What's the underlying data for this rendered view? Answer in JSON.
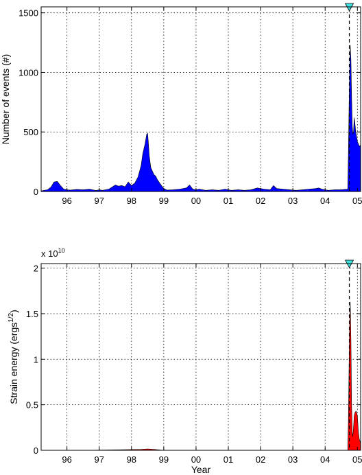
{
  "chart_data": [
    {
      "type": "area",
      "title": "",
      "xlabel": "",
      "ylabel": "Number of events (#)",
      "xlim": [
        1995.2,
        2005.1
      ],
      "ylim": [
        0,
        1550
      ],
      "xticks": [
        1996,
        1997,
        1998,
        1999,
        2000,
        2001,
        2002,
        2003,
        2004,
        2005
      ],
      "xtick_labels": [
        "96",
        "97",
        "98",
        "99",
        "00",
        "01",
        "02",
        "03",
        "04",
        "05"
      ],
      "yticks": [
        0,
        500,
        1000,
        1500
      ],
      "ytick_labels": [
        "0",
        "500",
        "1000",
        "1500"
      ],
      "grid": true,
      "fill_color": "#0000ff",
      "marker": {
        "x": 2004.75,
        "shape": "inverted-triangle",
        "color": "#40e0e0"
      },
      "series": [
        {
          "x": [
            1995.2,
            1995.4,
            1995.5,
            1995.6,
            1995.7,
            1995.8,
            1995.9,
            1996.0,
            1996.1,
            1996.3,
            1996.5,
            1996.7,
            1996.9,
            1997.0,
            1997.1,
            1997.3,
            1997.5,
            1997.6,
            1997.7,
            1997.8,
            1997.9,
            1998.0,
            1998.1,
            1998.2,
            1998.3,
            1998.35,
            1998.42,
            1998.47,
            1998.5,
            1998.52,
            1998.55,
            1998.6,
            1998.65,
            1998.7,
            1998.75,
            1998.8,
            1998.85,
            1998.9,
            1999.0,
            1999.1,
            1999.3,
            1999.5,
            1999.7,
            1999.8,
            1999.9,
            2000.0,
            2000.1,
            2000.3,
            2000.5,
            2000.7,
            2000.9,
            2001.1,
            2001.3,
            2001.5,
            2001.7,
            2001.9,
            2002.1,
            2002.3,
            2002.4,
            2002.5,
            2002.7,
            2002.9,
            2003.1,
            2003.3,
            2003.5,
            2003.7,
            2003.8,
            2003.9,
            2004.1,
            2004.3,
            2004.5,
            2004.7,
            2004.72,
            2004.74,
            2004.76,
            2004.78,
            2004.8,
            2004.82,
            2004.84,
            2004.86,
            2004.88,
            2004.9,
            2004.92,
            2004.95,
            2004.98,
            2005.0,
            2005.03,
            2005.06,
            2005.1
          ],
          "y": [
            5,
            15,
            35,
            80,
            85,
            50,
            20,
            15,
            12,
            18,
            15,
            20,
            8,
            15,
            10,
            20,
            55,
            45,
            50,
            40,
            80,
            50,
            70,
            120,
            220,
            320,
            400,
            480,
            490,
            420,
            300,
            200,
            170,
            140,
            130,
            100,
            80,
            60,
            25,
            12,
            15,
            20,
            30,
            55,
            20,
            15,
            20,
            10,
            15,
            10,
            20,
            10,
            15,
            10,
            15,
            30,
            20,
            15,
            50,
            25,
            20,
            15,
            10,
            15,
            20,
            25,
            30,
            20,
            10,
            15,
            15,
            20,
            300,
            700,
            1000,
            1230,
            1100,
            800,
            550,
            480,
            500,
            620,
            580,
            500,
            450,
            420,
            400,
            380,
            390
          ]
        }
      ]
    },
    {
      "type": "area",
      "title": "",
      "xlabel": "Year",
      "ylabel": "Strain energy (ergs",
      "ylabel_superscript": "1/2",
      "ylabel_close": ")",
      "multiplier": "x 10",
      "multiplier_exponent": "10",
      "xlim": [
        1995.2,
        2005.1
      ],
      "ylim": [
        0,
        2.05
      ],
      "xticks": [
        1996,
        1997,
        1998,
        1999,
        2000,
        2001,
        2002,
        2003,
        2004,
        2005
      ],
      "xtick_labels": [
        "96",
        "97",
        "98",
        "99",
        "00",
        "01",
        "02",
        "03",
        "04",
        "05"
      ],
      "yticks": [
        0,
        0.5,
        1,
        1.5,
        2
      ],
      "ytick_labels": [
        "0",
        "0.5",
        "1",
        "1.5",
        "2"
      ],
      "grid": true,
      "fill_color": "#ff0000",
      "marker": {
        "x": 2004.75,
        "shape": "inverted-triangle",
        "color": "#40e0e0"
      },
      "series": [
        {
          "x": [
            1995.2,
            1996.5,
            1997.6,
            1998.3,
            1998.5,
            1998.7,
            1999.0,
            2004.7,
            2004.72,
            2004.74,
            2004.76,
            2004.78,
            2004.8,
            2004.82,
            2004.84,
            2004.86,
            2004.88,
            2004.9,
            2004.93,
            2004.96,
            2005.0,
            2005.03,
            2005.06,
            2005.1
          ],
          "y": [
            0,
            0,
            0.005,
            0.01,
            0.015,
            0.01,
            0,
            0,
            0.3,
            0.9,
            1.4,
            1.63,
            1.2,
            0.5,
            0.2,
            0.15,
            0.25,
            0.38,
            0.42,
            0.43,
            0.38,
            0.2,
            0.12,
            0.08
          ]
        }
      ]
    }
  ]
}
